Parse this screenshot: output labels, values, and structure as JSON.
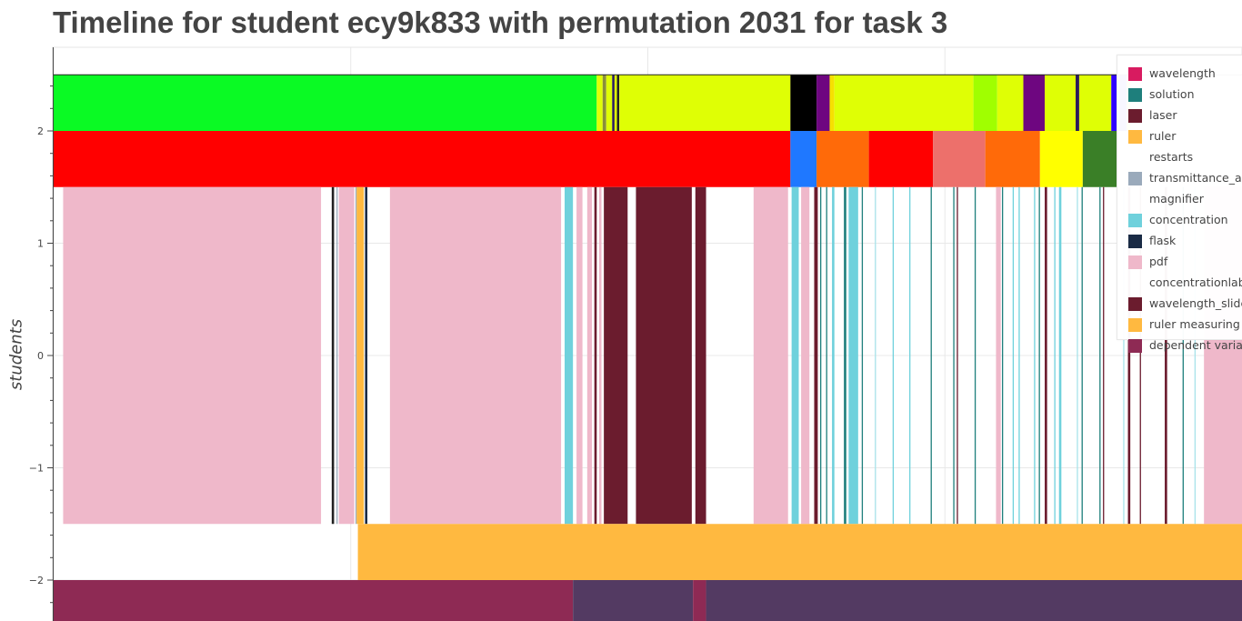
{
  "chart_data": {
    "type": "timeline",
    "title": "Timeline for student ecy9k833 with permutation 2031 for task 3",
    "ylabel": "students",
    "xlim": [
      0,
      1000
    ],
    "ylim": [
      -2.38,
      2.75
    ],
    "yticks": [
      2,
      1,
      0,
      -1,
      -2
    ],
    "ytick_labels": [
      "2",
      "1",
      "0",
      "−1",
      "−2"
    ],
    "grid": true,
    "legend": {
      "placement": "top-right",
      "items": [
        {
          "label": "wavelength",
          "color": "#d81b60"
        },
        {
          "label": "solution",
          "color": "#1e7f7c"
        },
        {
          "label": "laser",
          "color": "#6b1c2e"
        },
        {
          "label": "ruler",
          "color": "#ffb940"
        },
        {
          "label": "restarts",
          "color": ""
        },
        {
          "label": "transmittance_abs",
          "color": "#9aaabb"
        },
        {
          "label": "magnifier",
          "color": ""
        },
        {
          "label": "concentration",
          "color": "#6fd1dc"
        },
        {
          "label": "flask",
          "color": "#1a2b45"
        },
        {
          "label": "pdf",
          "color": "#efb8ca"
        },
        {
          "label": "concentrationlab",
          "color": ""
        },
        {
          "label": "wavelength_slider",
          "color": "#6b1c2e"
        },
        {
          "label": "ruler measuring",
          "color": "#ffb940"
        },
        {
          "label": "dependent variable",
          "color": "#8e2a54"
        }
      ]
    },
    "rows": [
      {
        "y_top": 2.5,
        "y_bottom": 2.0,
        "segments": [
          {
            "x0": 0,
            "x1": 457,
            "color": "#0afa24"
          },
          {
            "x0": 457,
            "x1": 462,
            "color": "#dfff05"
          },
          {
            "x0": 462,
            "x1": 465,
            "color": "#8a8f3a"
          },
          {
            "x0": 465,
            "x1": 470,
            "color": "#dfff05"
          },
          {
            "x0": 470,
            "x1": 472,
            "color": "#2a1c5a"
          },
          {
            "x0": 472,
            "x1": 474,
            "color": "#dfff05"
          },
          {
            "x0": 474,
            "x1": 476,
            "color": "#222222"
          },
          {
            "x0": 476,
            "x1": 620,
            "color": "#dfff05"
          },
          {
            "x0": 620,
            "x1": 642,
            "color": "#000000"
          },
          {
            "x0": 642,
            "x1": 653,
            "color": "#6e0680"
          },
          {
            "x0": 653,
            "x1": 657,
            "color": "#f6e000"
          },
          {
            "x0": 657,
            "x1": 774,
            "color": "#dfff05"
          },
          {
            "x0": 774,
            "x1": 794,
            "color": "#a0ff00"
          },
          {
            "x0": 794,
            "x1": 816,
            "color": "#dfff05"
          },
          {
            "x0": 816,
            "x1": 834,
            "color": "#6e0680"
          },
          {
            "x0": 834,
            "x1": 860,
            "color": "#dfff05"
          },
          {
            "x0": 860,
            "x1": 863,
            "color": "#2a1c5a"
          },
          {
            "x0": 863,
            "x1": 890,
            "color": "#dfff05"
          },
          {
            "x0": 890,
            "x1": 903,
            "color": "#3000ff"
          },
          {
            "x0": 903,
            "x1": 906,
            "color": "#dfff05"
          },
          {
            "x0": 906,
            "x1": 1000,
            "color": "#fafae8"
          }
        ]
      },
      {
        "y_top": 2.0,
        "y_bottom": 1.5,
        "segments": [
          {
            "x0": 0,
            "x1": 620,
            "color": "#ff0000"
          },
          {
            "x0": 620,
            "x1": 642,
            "color": "#1f78ff"
          },
          {
            "x0": 642,
            "x1": 686,
            "color": "#ff6a09"
          },
          {
            "x0": 686,
            "x1": 740,
            "color": "#ff0000"
          },
          {
            "x0": 740,
            "x1": 784,
            "color": "#ed706b"
          },
          {
            "x0": 784,
            "x1": 830,
            "color": "#ff6a09"
          },
          {
            "x0": 830,
            "x1": 866,
            "color": "#ffff00"
          },
          {
            "x0": 866,
            "x1": 896,
            "color": "#3a7f27"
          },
          {
            "x0": 896,
            "x1": 1000,
            "color": "#f2f2f8"
          }
        ]
      },
      {
        "y_top": 1.5,
        "y_bottom": -1.5,
        "segments": [
          {
            "x0": 8,
            "x1": 225,
            "color": "#efb8ca"
          },
          {
            "x0": 234,
            "x1": 236,
            "color": "#222222"
          },
          {
            "x0": 238,
            "x1": 239,
            "color": "#9aaabb"
          },
          {
            "x0": 240,
            "x1": 253,
            "color": "#efb8ca"
          },
          {
            "x0": 254,
            "x1": 255,
            "color": "#9aaabb"
          },
          {
            "x0": 255,
            "x1": 261,
            "color": "#ffb940"
          },
          {
            "x0": 262,
            "x1": 264,
            "color": "#1a2b45"
          },
          {
            "x0": 283,
            "x1": 427,
            "color": "#efb8ca"
          },
          {
            "x0": 430,
            "x1": 437,
            "color": "#6fd1dc"
          },
          {
            "x0": 440,
            "x1": 445,
            "color": "#efb8ca"
          },
          {
            "x0": 449,
            "x1": 453,
            "color": "#efb8ca"
          },
          {
            "x0": 455,
            "x1": 457,
            "color": "#6b1c2e"
          },
          {
            "x0": 459,
            "x1": 461,
            "color": "#efb8ca"
          },
          {
            "x0": 463,
            "x1": 483,
            "color": "#6b1c2e"
          },
          {
            "x0": 490,
            "x1": 537,
            "color": "#6b1c2e"
          },
          {
            "x0": 540,
            "x1": 549,
            "color": "#6b1c2e"
          },
          {
            "x0": 589,
            "x1": 618,
            "color": "#efb8ca"
          },
          {
            "x0": 621,
            "x1": 627,
            "color": "#6fd1dc"
          },
          {
            "x0": 629,
            "x1": 636,
            "color": "#efb8ca"
          },
          {
            "x0": 640,
            "x1": 643,
            "color": "#6b1c2e"
          },
          {
            "x0": 645,
            "x1": 646,
            "color": "#1e7f7c"
          },
          {
            "x0": 650,
            "x1": 651,
            "color": "#1e7f7c"
          },
          {
            "x0": 655,
            "x1": 657,
            "color": "#6fd1dc"
          },
          {
            "x0": 665,
            "x1": 667,
            "color": "#1e7f7c"
          },
          {
            "x0": 669,
            "x1": 677,
            "color": "#6fd1dc"
          },
          {
            "x0": 680,
            "x1": 681,
            "color": "#1e7f7c"
          },
          {
            "x0": 691,
            "x1": 692,
            "color": "#a8e3ea"
          },
          {
            "x0": 706,
            "x1": 707,
            "color": "#6fd1dc"
          },
          {
            "x0": 720,
            "x1": 721,
            "color": "#6fd1dc"
          },
          {
            "x0": 738,
            "x1": 739,
            "color": "#1e7f7c"
          },
          {
            "x0": 757,
            "x1": 758,
            "color": "#1e7f7c"
          },
          {
            "x0": 760,
            "x1": 761,
            "color": "#6b1c2e"
          },
          {
            "x0": 775,
            "x1": 776,
            "color": "#1e7f7c"
          },
          {
            "x0": 793,
            "x1": 797,
            "color": "#efb8ca"
          },
          {
            "x0": 798,
            "x1": 799,
            "color": "#1e7f7c"
          },
          {
            "x0": 807,
            "x1": 808,
            "color": "#6fd1dc"
          },
          {
            "x0": 812,
            "x1": 813,
            "color": "#6fd1dc"
          },
          {
            "x0": 825,
            "x1": 826,
            "color": "#6fd1dc"
          },
          {
            "x0": 829,
            "x1": 830,
            "color": "#1e7f7c"
          },
          {
            "x0": 834,
            "x1": 836,
            "color": "#6b1c2e"
          },
          {
            "x0": 842,
            "x1": 843,
            "color": "#6fd1dc"
          },
          {
            "x0": 846,
            "x1": 848,
            "color": "#6fd1dc"
          },
          {
            "x0": 861,
            "x1": 862,
            "color": "#a8e3ea"
          },
          {
            "x0": 865,
            "x1": 866,
            "color": "#1e7f7c"
          },
          {
            "x0": 880,
            "x1": 881,
            "color": "#1e7f7c"
          },
          {
            "x0": 883,
            "x1": 884,
            "color": "#6b1c2e"
          },
          {
            "x0": 900,
            "x1": 901,
            "color": "#a8e3ea"
          },
          {
            "x0": 904,
            "x1": 906,
            "color": "#6b1c2e"
          },
          {
            "x0": 914,
            "x1": 915,
            "color": "#6b1c2e"
          },
          {
            "x0": 935,
            "x1": 937,
            "color": "#6b1c2e"
          },
          {
            "x0": 950,
            "x1": 951,
            "color": "#1e7f7c"
          },
          {
            "x0": 960,
            "x1": 961,
            "color": "#a8e3ea"
          },
          {
            "x0": 968,
            "x1": 1000,
            "color": "#efb8ca"
          }
        ]
      },
      {
        "y_top": -1.5,
        "y_bottom": -2.0,
        "segments": [
          {
            "x0": 256,
            "x1": 1000,
            "color": "#ffb940"
          }
        ]
      },
      {
        "y_top": -2.0,
        "y_bottom": -2.5,
        "segments": [
          {
            "x0": 0,
            "x1": 437,
            "color": "#8e2a54"
          },
          {
            "x0": 437,
            "x1": 538,
            "color": "#533a62"
          },
          {
            "x0": 538,
            "x1": 549,
            "color": "#8e2a54"
          },
          {
            "x0": 549,
            "x1": 1000,
            "color": "#533a62"
          }
        ]
      }
    ]
  }
}
